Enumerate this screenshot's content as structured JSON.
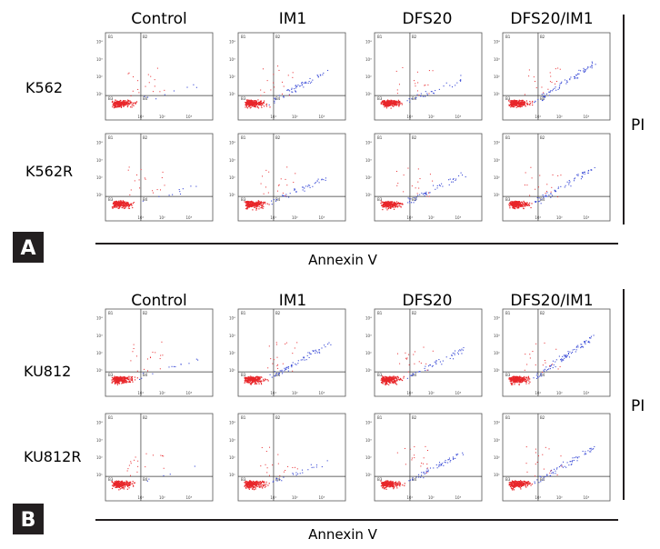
{
  "panels": [
    {
      "label": "A",
      "columns": [
        "Control",
        "IM1",
        "DFS20",
        "DFS20/IM1"
      ],
      "rows": [
        "K562",
        "K562R"
      ],
      "x_axis_label": "Annexin V",
      "y_axis_label": "PI"
    },
    {
      "label": "B",
      "columns": [
        "Control",
        "IM1",
        "DFS20",
        "DFS20/IM1"
      ],
      "rows": [
        "KU812",
        "KU812R"
      ],
      "x_axis_label": "Annexin V",
      "y_axis_label": "PI"
    }
  ],
  "quadrant_labels": [
    "B1",
    "B2",
    "B3",
    "B4"
  ],
  "tick_labels": [
    "10°",
    "10¹",
    "10²",
    "10³",
    "10⁴"
  ],
  "colors": {
    "live": "#e8262a",
    "apoptotic": "#3a4bd6",
    "frame": "#555555",
    "badge": "#231f20"
  },
  "chart_data": {
    "type": "scatter",
    "description_of_encoding": "flow cytometry density plots; quadrant gates at Annexin V ~10^1 and PI ~10^1 (log scales 10^0-10^4)",
    "x_scale": "log",
    "y_scale": "log",
    "xlim": [
      1,
      10000
    ],
    "ylim": [
      1,
      10000
    ],
    "grid": false,
    "plots": [
      {
        "panel": "A",
        "row": "K562",
        "column": "Control",
        "apoptosis": 0.05
      },
      {
        "panel": "A",
        "row": "K562",
        "column": "IM1",
        "apoptosis": 0.35
      },
      {
        "panel": "A",
        "row": "K562",
        "column": "DFS20",
        "apoptosis": 0.2
      },
      {
        "panel": "A",
        "row": "K562",
        "column": "DFS20/IM1",
        "apoptosis": 0.45
      },
      {
        "panel": "A",
        "row": "K562R",
        "column": "Control",
        "apoptosis": 0.06
      },
      {
        "panel": "A",
        "row": "K562R",
        "column": "IM1",
        "apoptosis": 0.25
      },
      {
        "panel": "A",
        "row": "K562R",
        "column": "DFS20",
        "apoptosis": 0.3
      },
      {
        "panel": "A",
        "row": "K562R",
        "column": "DFS20/IM1",
        "apoptosis": 0.4
      },
      {
        "panel": "B",
        "row": "KU812",
        "column": "Control",
        "apoptosis": 0.08
      },
      {
        "panel": "B",
        "row": "KU812",
        "column": "IM1",
        "apoptosis": 0.4
      },
      {
        "panel": "B",
        "row": "KU812",
        "column": "DFS20",
        "apoptosis": 0.3
      },
      {
        "panel": "B",
        "row": "KU812",
        "column": "DFS20/IM1",
        "apoptosis": 0.55
      },
      {
        "panel": "B",
        "row": "KU812R",
        "column": "Control",
        "apoptosis": 0.03
      },
      {
        "panel": "B",
        "row": "KU812R",
        "column": "IM1",
        "apoptosis": 0.15
      },
      {
        "panel": "B",
        "row": "KU812R",
        "column": "DFS20",
        "apoptosis": 0.35
      },
      {
        "panel": "B",
        "row": "KU812R",
        "column": "DFS20/IM1",
        "apoptosis": 0.4
      }
    ]
  }
}
